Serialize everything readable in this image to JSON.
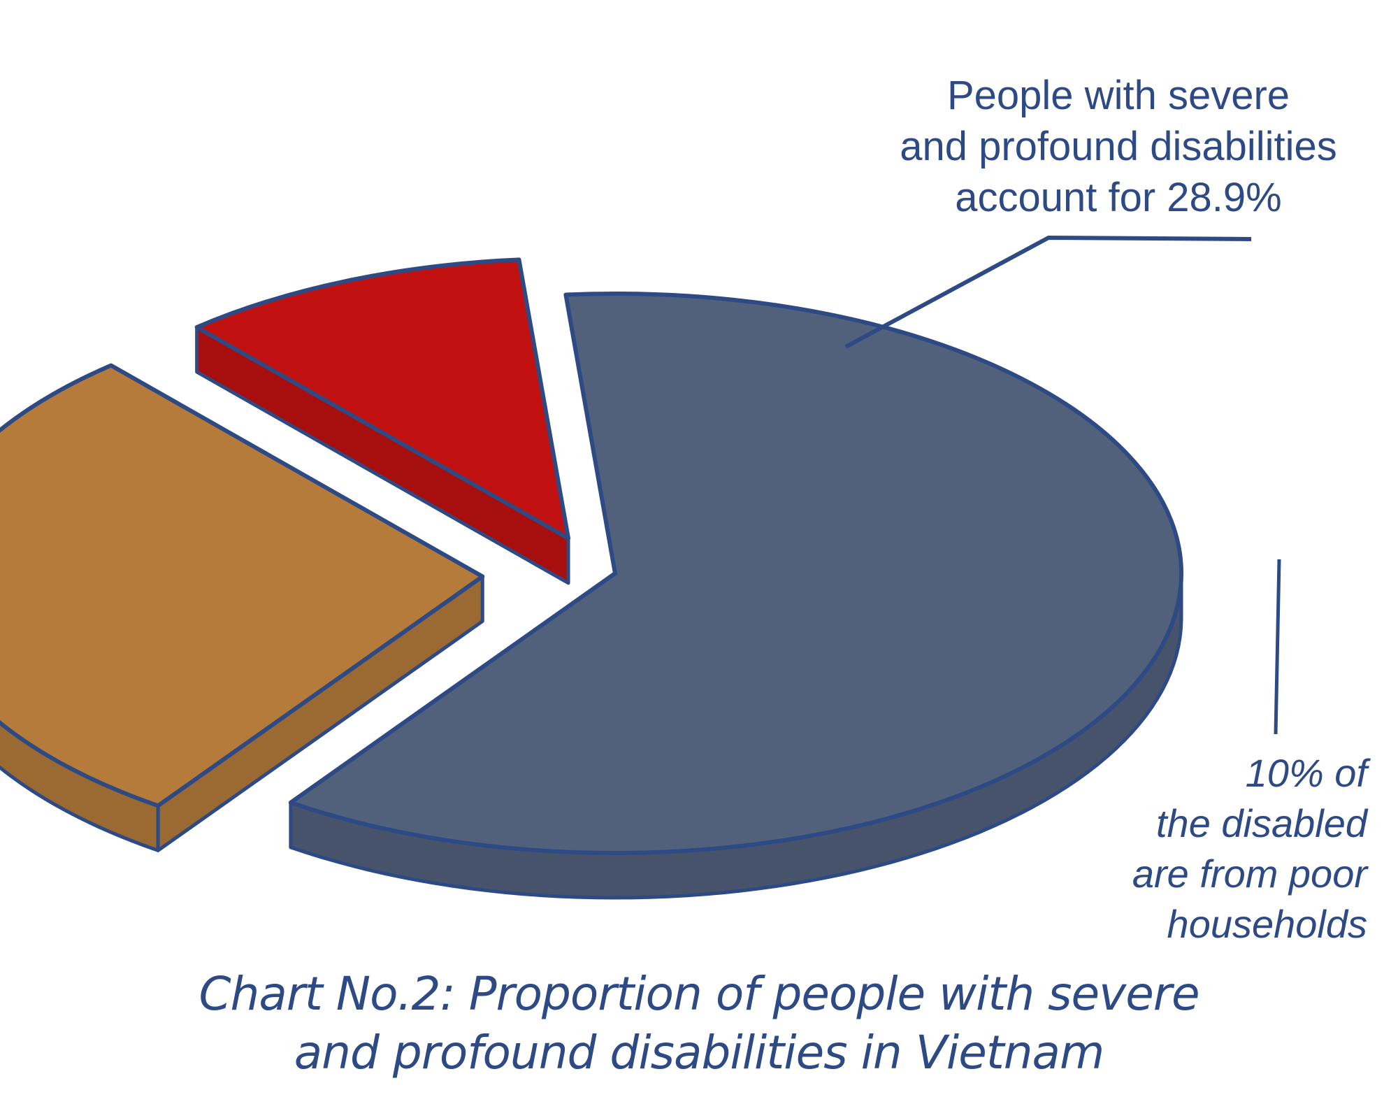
{
  "chart_data": {
    "type": "pie",
    "title": "Chart No.2: Proportion of people with severe and profound disabilities in Vietnam",
    "slices": [
      {
        "value": 61.1,
        "color": "#52617b"
      },
      {
        "value": 28.9,
        "label": "People with severe and profound disabilities account for 28.9%",
        "color": "#b47b3b",
        "exploded": true
      },
      {
        "value": 10.0,
        "label": "10% of the disabled are from poor households",
        "color": "#c21111",
        "exploded": true
      }
    ],
    "outline_color": "#2e4a84"
  },
  "labels": {
    "top": [
      "People with severe",
      "and profound disabilities",
      "account for 28.9%"
    ],
    "side": [
      "10% of",
      "the disabled",
      "are from poor",
      "households"
    ],
    "caption": [
      "Chart No.2: Proportion of people with severe",
      "and profound disabilities in Vietnam"
    ]
  }
}
